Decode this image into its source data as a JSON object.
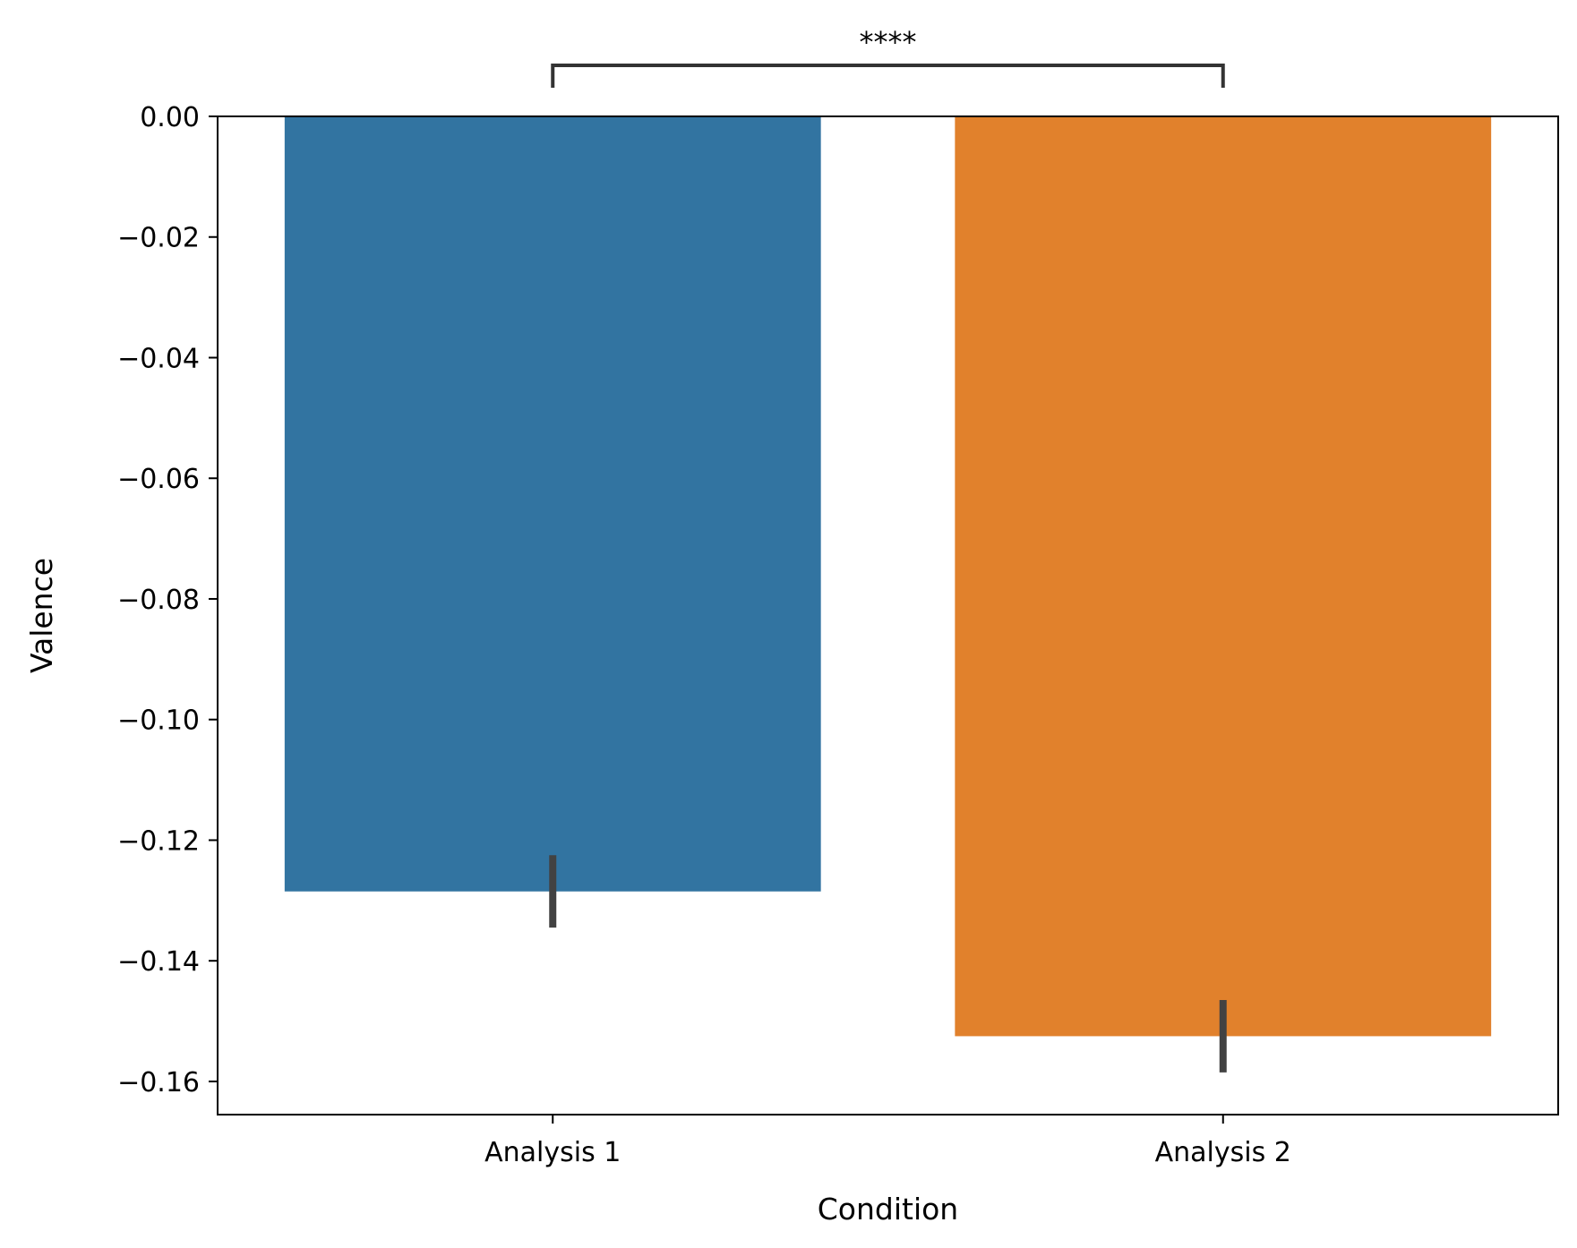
{
  "chart_data": {
    "type": "bar",
    "categories": [
      "Analysis 1",
      "Analysis 2"
    ],
    "values": [
      -0.1285,
      -0.1525
    ],
    "error_bars": [
      {
        "low": -0.1345,
        "high": -0.1225
      },
      {
        "low": -0.1585,
        "high": -0.1465
      }
    ],
    "colors": [
      "#3274a1",
      "#e1812c"
    ],
    "xlabel": "Condition",
    "ylabel": "Valence",
    "ylim": [
      -0.1655,
      0.0
    ],
    "yticks": [
      0.0,
      -0.02,
      -0.04,
      -0.06,
      -0.08,
      -0.1,
      -0.12,
      -0.14,
      -0.16
    ],
    "ytick_labels": [
      "0.00",
      "−0.02",
      "−0.04",
      "−0.06",
      "−0.08",
      "−0.10",
      "−0.12",
      "−0.14",
      "−0.16"
    ],
    "grid": false,
    "significance": {
      "between": [
        "Analysis 1",
        "Analysis 2"
      ],
      "label": "****"
    }
  }
}
